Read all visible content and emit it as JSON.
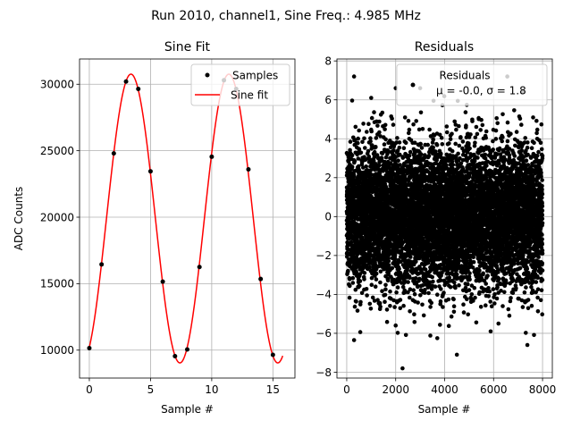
{
  "figure": {
    "suptitle": "Run 2010, channel1, Sine Freq.: 4.985 MHz"
  },
  "chart_data": [
    {
      "type": "line",
      "title": "Sine Fit",
      "xlabel": "Sample #",
      "ylabel": "ADC Counts",
      "xlim": [
        -0.8,
        16.8
      ],
      "ylim": [
        7900,
        31900
      ],
      "xticks": [
        0,
        5,
        10,
        15
      ],
      "yticks": [
        10000,
        15000,
        20000,
        25000,
        30000
      ],
      "grid": true,
      "legend_position": "top-right",
      "fit_curve": {
        "offset": 19900,
        "amplitude": 10860,
        "period": 8.0,
        "peak_x": 3.4,
        "x_range": [
          0,
          15.8
        ]
      },
      "series": [
        {
          "name": "Samples",
          "style": "scatter",
          "color": "#000000",
          "x": [
            0,
            1,
            2,
            3,
            4,
            5,
            6,
            7,
            8,
            9,
            10,
            11,
            12,
            13,
            14,
            15
          ],
          "y": [
            10150,
            16450,
            24800,
            30200,
            29650,
            23450,
            15150,
            9550,
            10050,
            16250,
            24550,
            30300,
            29650,
            23600,
            15350,
            9650
          ]
        },
        {
          "name": "Sine fit",
          "style": "line",
          "color": "#ff0000"
        }
      ]
    },
    {
      "type": "scatter",
      "title": "Residuals",
      "xlabel": "Sample #",
      "ylabel": "",
      "xlim": [
        -400,
        8400
      ],
      "ylim": [
        -8.3,
        8.1
      ],
      "xticks": [
        0,
        2000,
        4000,
        6000,
        8000
      ],
      "yticks": [
        -8,
        -6,
        -4,
        -2,
        0,
        2,
        4,
        6,
        8
      ],
      "grid": true,
      "legend_position": "top-right",
      "n_points": 8000,
      "x_range": [
        0,
        8000
      ],
      "series": [
        {
          "name": "Residuals",
          "legend_stats": "μ = -0.0, σ = 1.8",
          "mean": 0.0,
          "std": 1.8,
          "color": "#000000"
        }
      ],
      "outliers": [
        {
          "x": 300,
          "y": 7.2
        },
        {
          "x": 6560,
          "y": 7.2
        },
        {
          "x": 2280,
          "y": -7.8
        },
        {
          "x": 4500,
          "y": -7.1
        },
        {
          "x": 300,
          "y": -6.35
        },
        {
          "x": 7380,
          "y": -6.6
        },
        {
          "x": 2000,
          "y": 6.6
        },
        {
          "x": 3000,
          "y": 6.6
        },
        {
          "x": 3700,
          "y": -6.25
        },
        {
          "x": 5880,
          "y": -5.9
        },
        {
          "x": 2000,
          "y": -5.6
        },
        {
          "x": 7200,
          "y": 6.4
        },
        {
          "x": 1000,
          "y": 6.1
        },
        {
          "x": 6200,
          "y": -5.5
        }
      ]
    }
  ]
}
